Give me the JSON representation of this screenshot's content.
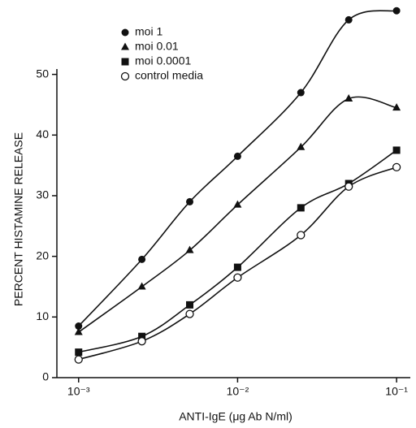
{
  "chart_data": {
    "type": "line",
    "xlabel": "ANTI-IgE (μg Ab N/ml)",
    "ylabel": "PERCENT HISTAMINE RELEASE",
    "x": [
      0.001,
      0.0025,
      0.005,
      0.01,
      0.025,
      0.05,
      0.1
    ],
    "xscale": "log",
    "xlim": [
      0.00073,
      0.122
    ],
    "xticks": [
      {
        "value": 0.001,
        "label": "10⁻³"
      },
      {
        "value": 0.01,
        "label": "10⁻²"
      },
      {
        "value": 0.1,
        "label": "10⁻¹"
      }
    ],
    "ylim": [
      0,
      62
    ],
    "yticks": [
      0,
      10,
      20,
      30,
      40,
      50
    ],
    "legend": "upper left",
    "series": [
      {
        "name": "moi 1",
        "color": "#111111",
        "marker": "filled-circle",
        "values": [
          8.5,
          19.5,
          29,
          36.5,
          47,
          59,
          60.5
        ]
      },
      {
        "name": "moi 0.01",
        "color": "#111111",
        "marker": "filled-triangle",
        "values": [
          7.5,
          15,
          21,
          28.5,
          38,
          46,
          44.5
        ]
      },
      {
        "name": "moi 0.0001",
        "color": "#111111",
        "marker": "filled-square",
        "values": [
          4.2,
          6.8,
          12,
          18.2,
          28,
          32,
          37.5
        ]
      },
      {
        "name": "control media",
        "color": "#111111",
        "marker": "open-circle",
        "values": [
          3,
          6,
          10.5,
          16.5,
          23.5,
          31.5,
          34.7
        ]
      }
    ]
  }
}
